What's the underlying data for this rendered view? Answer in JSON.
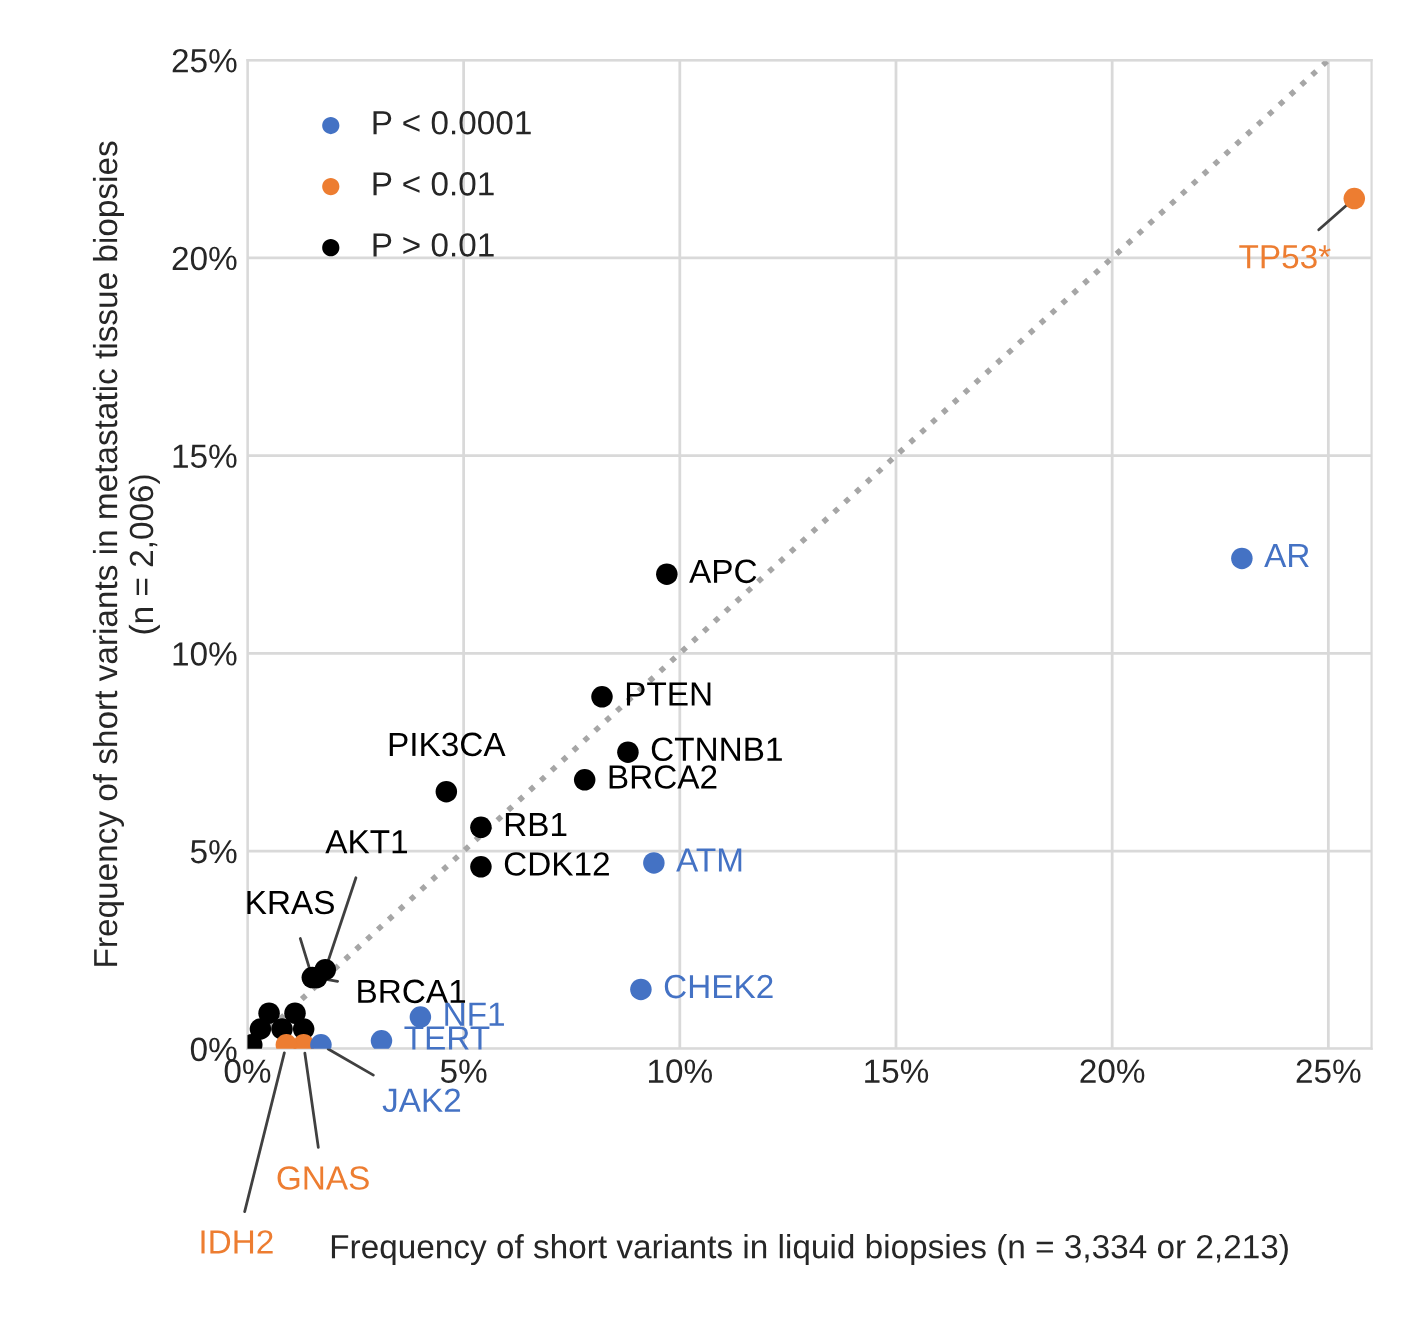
{
  "chart_data": {
    "type": "scatter",
    "xlabel": "Frequency of short variants in liquid biopsies (n = 3,334 or 2,213)",
    "ylabel": "Frequency of short variants in metastatic tissue biopsies\n(n = 2,006)",
    "xlim": [
      0,
      26
    ],
    "ylim": [
      0,
      25
    ],
    "xticks": [
      {
        "value": 0,
        "label": "0%"
      },
      {
        "value": 5,
        "label": "5%"
      },
      {
        "value": 10,
        "label": "10%"
      },
      {
        "value": 15,
        "label": "15%"
      },
      {
        "value": 20,
        "label": "20%"
      },
      {
        "value": 25,
        "label": "25%"
      }
    ],
    "yticks": [
      {
        "value": 0,
        "label": "0%"
      },
      {
        "value": 5,
        "label": "5%"
      },
      {
        "value": 10,
        "label": "10%"
      },
      {
        "value": 15,
        "label": "15%"
      },
      {
        "value": 20,
        "label": "20%"
      },
      {
        "value": 25,
        "label": "25%"
      }
    ],
    "grid": true,
    "legend": "top left",
    "marker": "circle",
    "series": [
      {
        "name": "P < 0.0001",
        "color": "#4472c4",
        "x": [
          23.0,
          9.4,
          9.1,
          4.0,
          3.1,
          1.7
        ],
        "values": [
          12.4,
          4.7,
          1.5,
          0.8,
          0.2,
          0.1
        ],
        "value_labels": [
          "AR",
          "ATM",
          "CHEK2",
          "NF1",
          "TERT",
          "JAK2"
        ]
      },
      {
        "name": "P < 0.01",
        "color": "#ed7d31",
        "x": [
          25.6,
          1.3,
          0.9
        ],
        "values": [
          21.5,
          0.1,
          0.1
        ],
        "value_labels": [
          "TP53*",
          "GNAS",
          "IDH2"
        ]
      },
      {
        "name": "P > 0.01",
        "color": "#000000",
        "x": [
          9.7,
          8.2,
          8.8,
          7.8,
          4.6,
          5.4,
          5.4,
          1.8,
          1.5,
          1.6,
          0.1,
          0.3,
          0.5,
          0.8,
          1.1,
          1.3
        ],
        "values": [
          12.0,
          8.9,
          7.5,
          6.8,
          6.5,
          5.6,
          4.6,
          2.0,
          1.8,
          1.8,
          0.1,
          0.5,
          0.9,
          0.5,
          0.9,
          0.5
        ],
        "value_labels": [
          "APC",
          "PTEN",
          "CTNNB1",
          "BRCA2",
          "PIK3CA",
          "RB1",
          "CDK12",
          "AKT1",
          "KRAS",
          "BRCA1",
          null,
          null,
          null,
          null,
          null,
          null
        ]
      },
      {
        "type": "line",
        "color": "#a6a6a6",
        "line_style": "dotted",
        "marker": "none",
        "x": [
          0,
          25
        ],
        "values": [
          0,
          25
        ]
      }
    ]
  }
}
